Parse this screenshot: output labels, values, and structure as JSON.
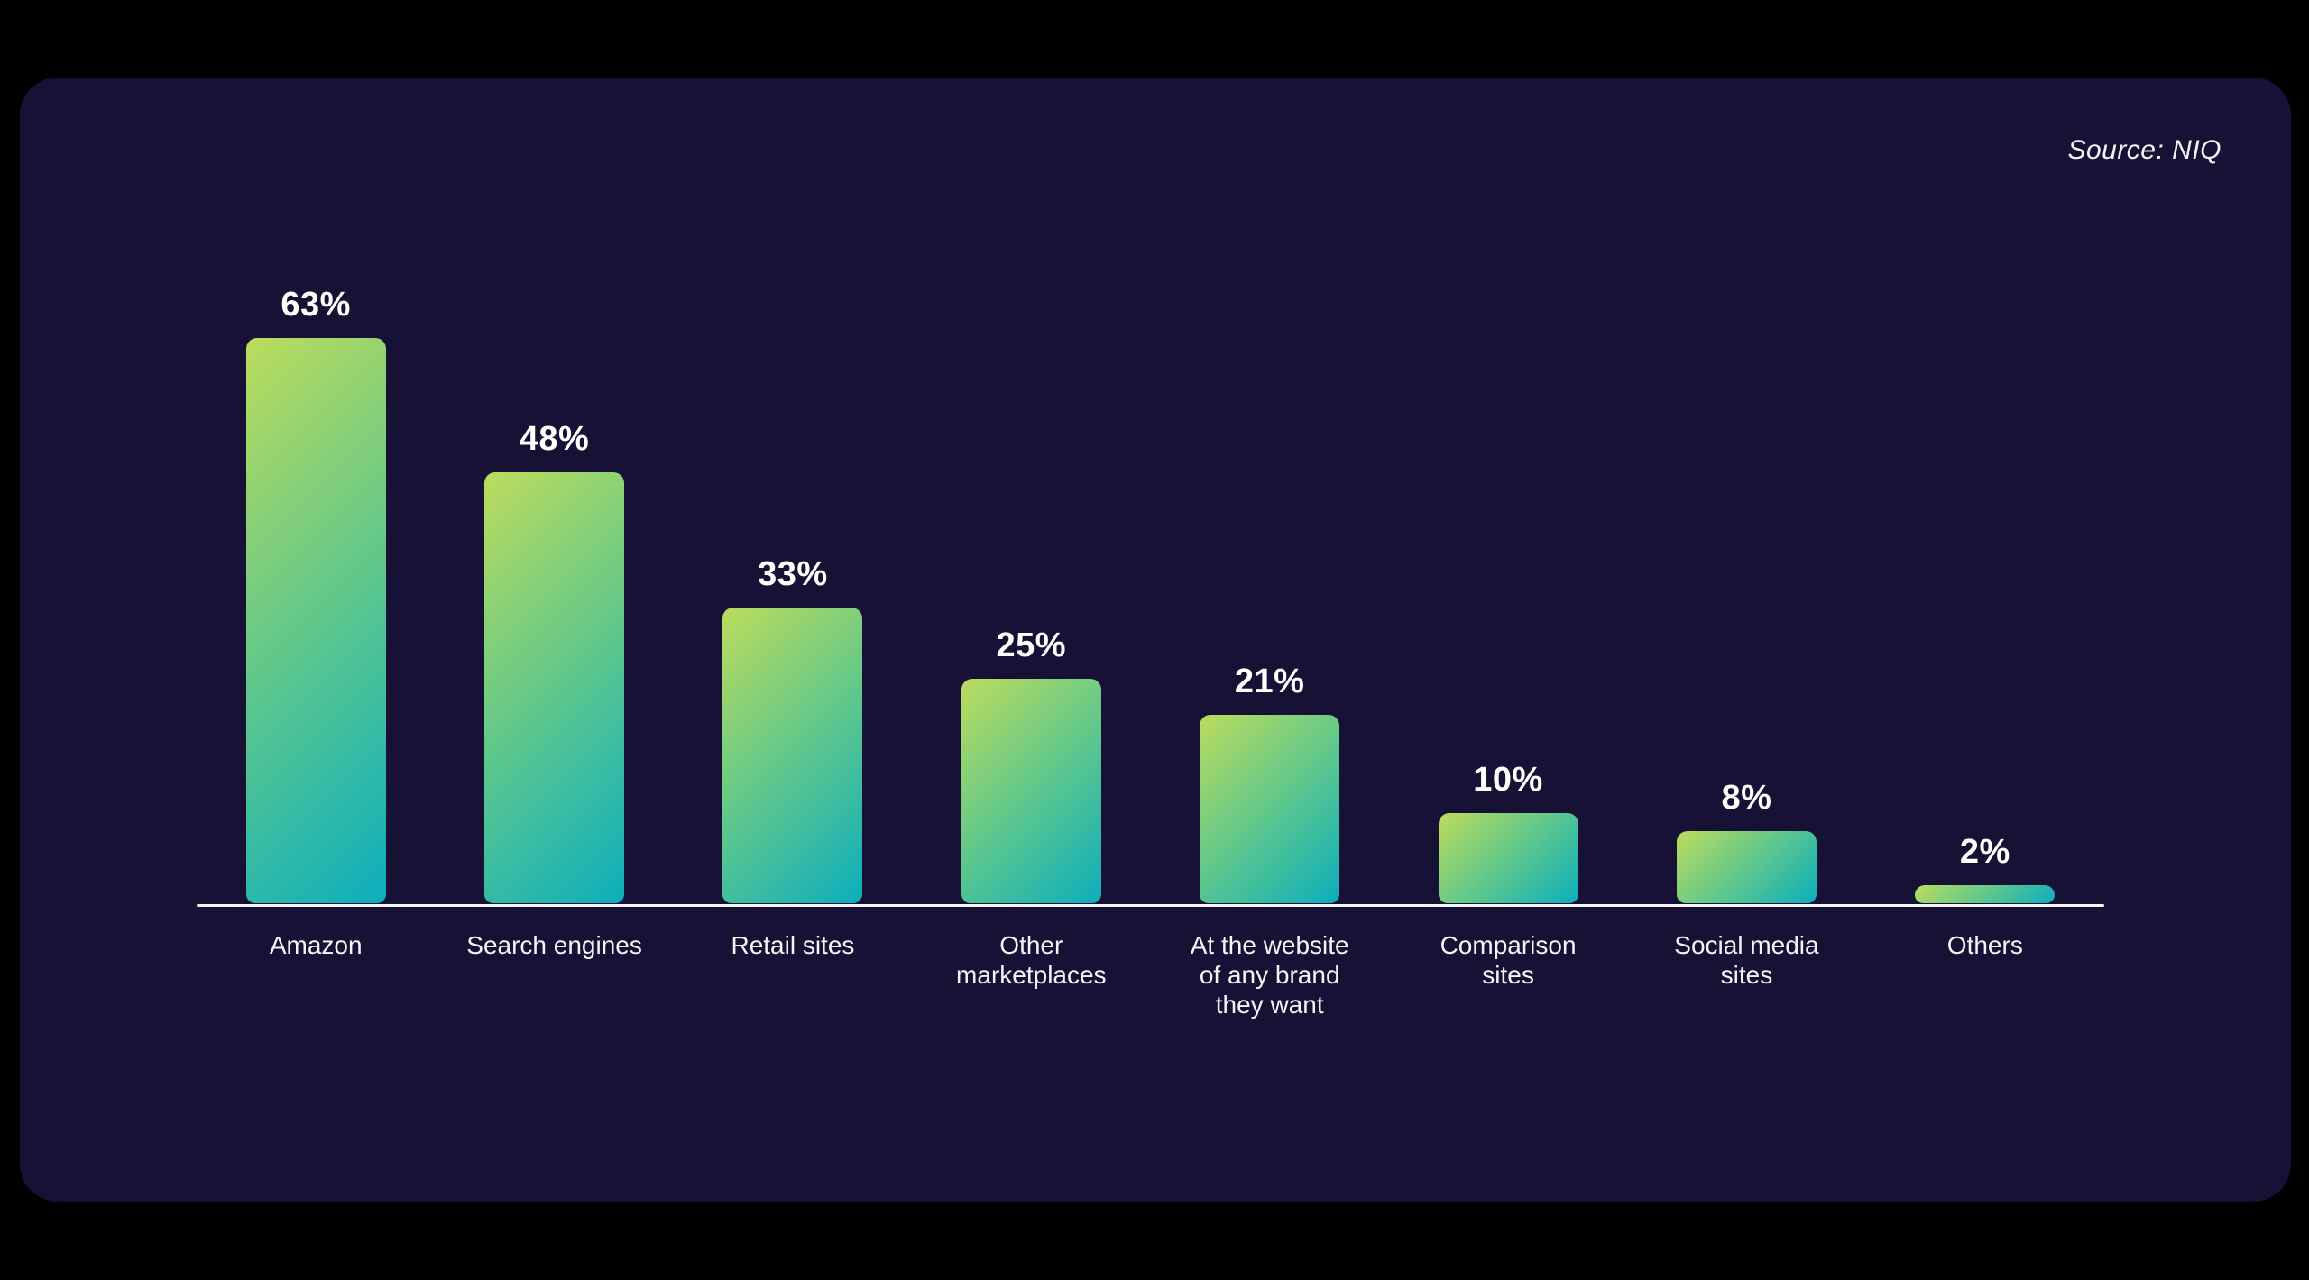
{
  "source_label": "Source: NIQ",
  "colors": {
    "page_background": "#000000",
    "card_background": "#171136",
    "text": "#ffffff",
    "axis_line": "#f5f5f8",
    "bar_gradient_start": "#bcdc5c",
    "bar_gradient_mid": "#5cc78d",
    "bar_gradient_end": "#0caebd"
  },
  "chart_data": {
    "type": "bar",
    "title": "",
    "xlabel": "",
    "ylabel": "",
    "unit": "%",
    "ylim": [
      0,
      100
    ],
    "grid": false,
    "legend": false,
    "source": "Source: NIQ",
    "categories": [
      "Amazon",
      "Search engines",
      "Retail sites",
      "Other marketplaces",
      "At the website of any brand they want",
      "Comparison sites",
      "Social media sites",
      "Others"
    ],
    "category_display": [
      "Amazon",
      "Search engines",
      "Retail sites",
      "Other\nmarketplaces",
      "At the website\nof any brand\nthey want",
      "Comparison\nsites",
      "Social media\nsites",
      "Others"
    ],
    "values": [
      63,
      48,
      33,
      25,
      21,
      10,
      8,
      2
    ],
    "value_labels": [
      "63%",
      "48%",
      "33%",
      "25%",
      "21%",
      "10%",
      "8%",
      "2%"
    ]
  }
}
